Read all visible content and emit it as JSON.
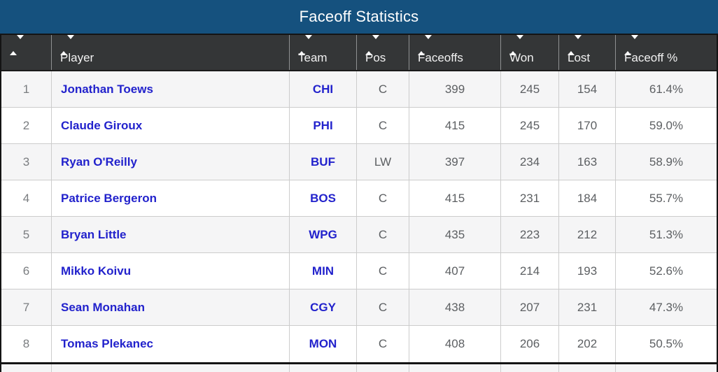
{
  "title_bar": {
    "title": "Faceoff Statistics"
  },
  "table": {
    "columns": [
      {
        "key": "rank",
        "label": ""
      },
      {
        "key": "player",
        "label": "Player"
      },
      {
        "key": "team",
        "label": "Team"
      },
      {
        "key": "pos",
        "label": "Pos"
      },
      {
        "key": "faceoffs",
        "label": "Faceoffs"
      },
      {
        "key": "won",
        "label": "Won"
      },
      {
        "key": "lost",
        "label": "Lost"
      },
      {
        "key": "pct",
        "label": "Faceoff %"
      }
    ],
    "rows": [
      {
        "rank": "1",
        "player": "Jonathan Toews",
        "team": "CHI",
        "pos": "C",
        "faceoffs": "399",
        "won": "245",
        "lost": "154",
        "pct": "61.4%"
      },
      {
        "rank": "2",
        "player": "Claude Giroux",
        "team": "PHI",
        "pos": "C",
        "faceoffs": "415",
        "won": "245",
        "lost": "170",
        "pct": "59.0%"
      },
      {
        "rank": "3",
        "player": "Ryan O'Reilly",
        "team": "BUF",
        "pos": "LW",
        "faceoffs": "397",
        "won": "234",
        "lost": "163",
        "pct": "58.9%"
      },
      {
        "rank": "4",
        "player": "Patrice Bergeron",
        "team": "BOS",
        "pos": "C",
        "faceoffs": "415",
        "won": "231",
        "lost": "184",
        "pct": "55.7%"
      },
      {
        "rank": "5",
        "player": "Bryan Little",
        "team": "WPG",
        "pos": "C",
        "faceoffs": "435",
        "won": "223",
        "lost": "212",
        "pct": "51.3%"
      },
      {
        "rank": "6",
        "player": "Mikko Koivu",
        "team": "MIN",
        "pos": "C",
        "faceoffs": "407",
        "won": "214",
        "lost": "193",
        "pct": "52.6%"
      },
      {
        "rank": "7",
        "player": "Sean Monahan",
        "team": "CGY",
        "pos": "C",
        "faceoffs": "438",
        "won": "207",
        "lost": "231",
        "pct": "47.3%"
      },
      {
        "rank": "8",
        "player": "Tomas Plekanec",
        "team": "MON",
        "pos": "C",
        "faceoffs": "408",
        "won": "206",
        "lost": "202",
        "pct": "50.5%"
      }
    ]
  },
  "colors": {
    "title_bar_bg": "#15517e",
    "header_bg": "#343637",
    "link_blue": "#2222cc",
    "row_alt_bg": "#f5f5f6",
    "frame_black": "#141414"
  },
  "icons": {
    "sort": "sort-asc-desc-arrows"
  }
}
